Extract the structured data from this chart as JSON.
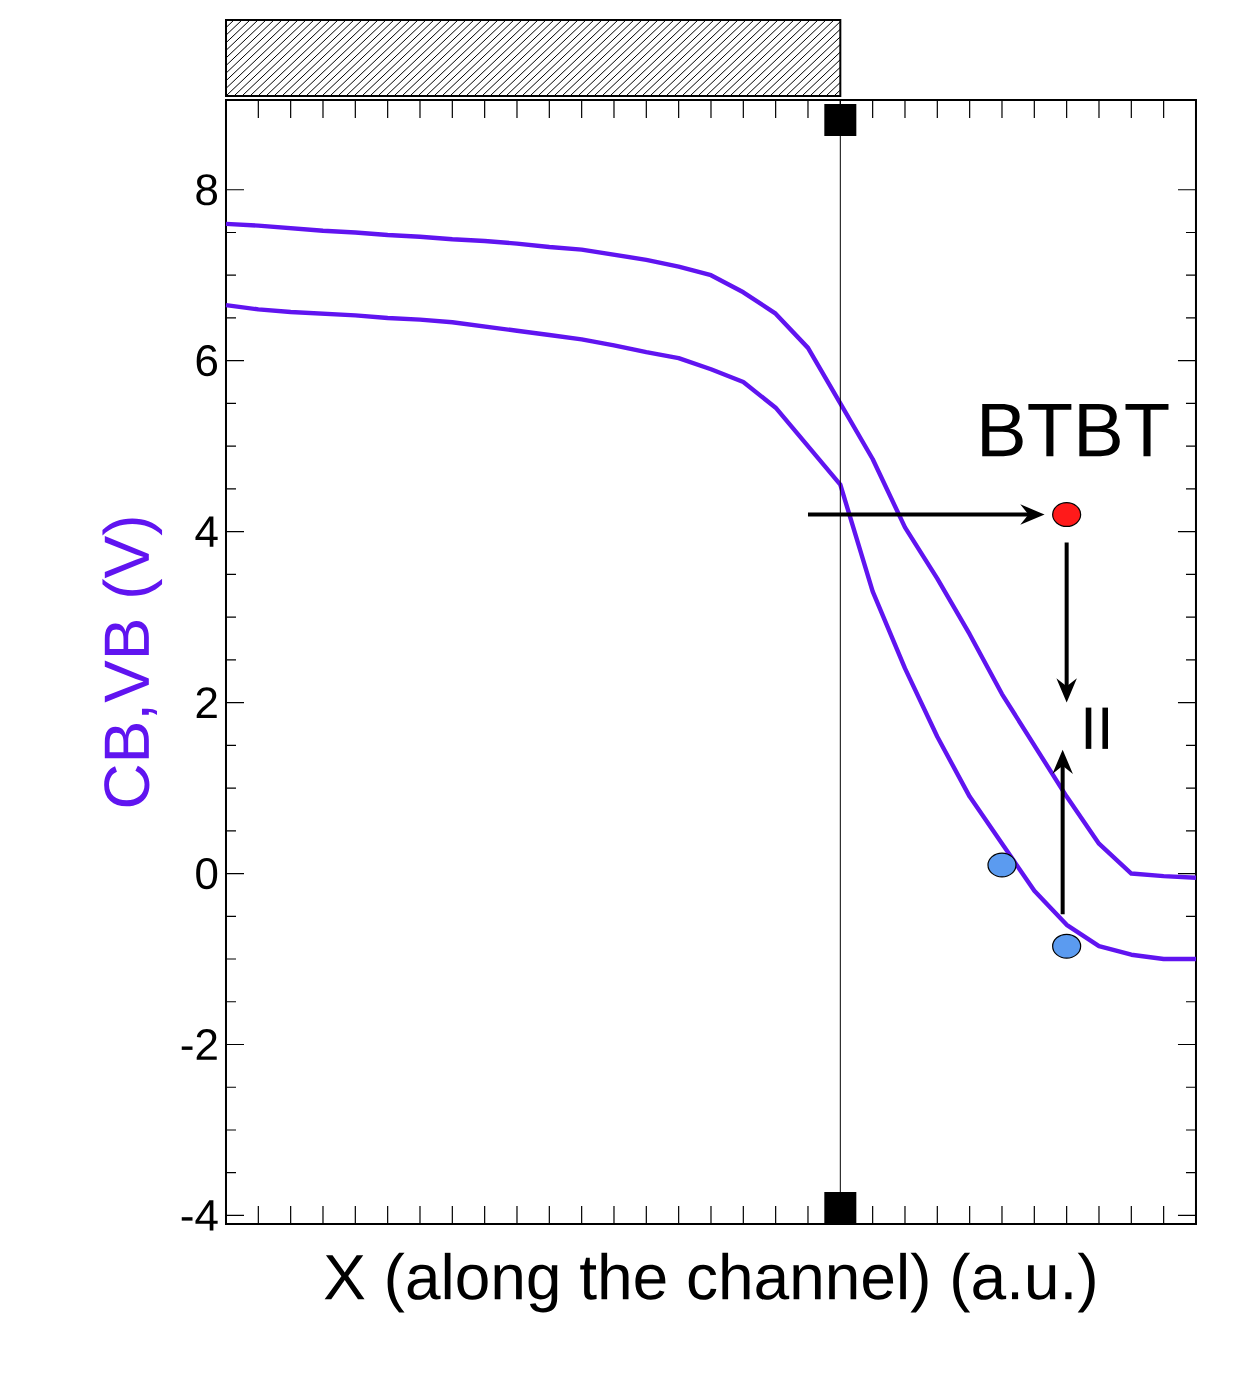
{
  "chart_data": {
    "type": "line",
    "xlabel": "X (along the channel) (a.u.)",
    "ylabel": "CB,VB (V)",
    "categories": [
      null,
      null,
      null,
      null,
      null,
      null,
      null,
      null,
      null,
      null,
      null,
      null,
      null,
      null,
      null,
      null,
      null,
      null,
      null,
      null,
      null,
      null,
      null,
      null,
      null,
      null,
      null,
      null,
      null,
      null,
      null
    ],
    "series": [
      {
        "color": "#6014f0",
        "values": [
          7.6,
          7.58,
          7.55,
          7.52,
          7.5,
          7.47,
          7.45,
          7.42,
          7.4,
          7.37,
          7.33,
          7.3,
          7.24,
          7.18,
          7.1,
          7.0,
          6.8,
          6.55,
          6.15,
          5.5,
          4.85,
          4.05,
          3.45,
          2.8,
          2.1,
          1.5,
          0.9,
          0.35,
          0.0,
          -0.03,
          -0.05
        ]
      },
      {
        "color": "#6014f0",
        "values": [
          6.65,
          6.6,
          6.57,
          6.55,
          6.53,
          6.5,
          6.48,
          6.45,
          6.4,
          6.35,
          6.3,
          6.25,
          6.18,
          6.1,
          6.03,
          5.9,
          5.75,
          5.45,
          5.0,
          4.55,
          3.3,
          2.4,
          1.6,
          0.9,
          0.35,
          -0.2,
          -0.6,
          -0.85,
          -0.95,
          -1.0,
          -1.0
        ]
      },
      {
        "type": "scatter",
        "marker": "circle",
        "color": "#ff1a1a",
        "values": [
          null,
          null,
          null,
          null,
          null,
          null,
          null,
          null,
          null,
          null,
          null,
          null,
          null,
          null,
          null,
          null,
          null,
          null,
          null,
          null,
          null,
          null,
          null,
          null,
          null,
          null,
          4.2,
          null,
          null,
          null,
          null
        ]
      },
      {
        "type": "scatter",
        "marker": "circle",
        "color": "#5b9bf0",
        "values": [
          null,
          null,
          null,
          null,
          null,
          null,
          null,
          null,
          null,
          null,
          null,
          null,
          null,
          null,
          null,
          null,
          null,
          null,
          null,
          null,
          null,
          null,
          null,
          null,
          0.1,
          null,
          -0.85,
          null,
          null,
          null,
          null
        ]
      }
    ],
    "ylim": [
      -4.1,
      9.05
    ],
    "yticks": [
      -4,
      -2,
      0,
      2,
      4,
      6,
      8
    ],
    "annotations": [
      "BTBT",
      "II"
    ],
    "tick_labels": "y",
    "grid": false
  }
}
